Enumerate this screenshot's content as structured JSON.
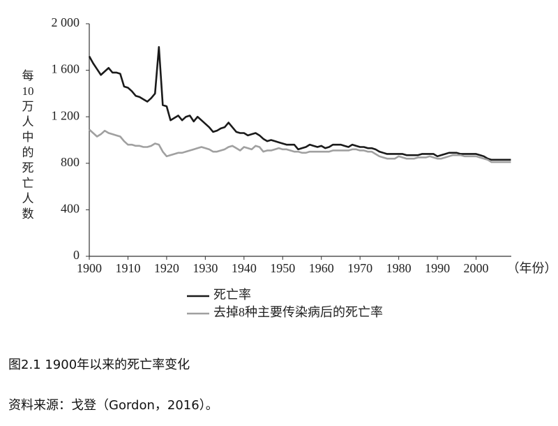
{
  "chart_data": {
    "type": "line",
    "y_label": "每10万人中的死亡人数",
    "x_label": "（年份）",
    "caption": "图2.1 1900年以来的死亡率变化",
    "source": "资料来源：戈登（Gordon，2016）。",
    "x": [
      1900,
      1901,
      1902,
      1903,
      1904,
      1905,
      1906,
      1907,
      1908,
      1909,
      1910,
      1911,
      1912,
      1913,
      1914,
      1915,
      1916,
      1917,
      1918,
      1919,
      1920,
      1921,
      1922,
      1923,
      1924,
      1925,
      1926,
      1927,
      1928,
      1929,
      1930,
      1931,
      1932,
      1933,
      1934,
      1935,
      1936,
      1937,
      1938,
      1939,
      1940,
      1941,
      1942,
      1943,
      1944,
      1945,
      1946,
      1947,
      1948,
      1949,
      1950,
      1951,
      1952,
      1953,
      1954,
      1955,
      1956,
      1957,
      1958,
      1959,
      1960,
      1961,
      1962,
      1963,
      1964,
      1965,
      1966,
      1967,
      1968,
      1969,
      1970,
      1971,
      1972,
      1973,
      1974,
      1975,
      1976,
      1977,
      1978,
      1979,
      1980,
      1981,
      1982,
      1983,
      1984,
      1985,
      1986,
      1987,
      1988,
      1989,
      1990,
      1991,
      1992,
      1993,
      1994,
      1995,
      1996,
      1997,
      1998,
      1999,
      2000,
      2001,
      2002,
      2003,
      2004,
      2005,
      2006,
      2007,
      2008,
      2009
    ],
    "series": [
      {
        "name": "死亡率",
        "color": "#1a1a1a",
        "values": [
          1720,
          1660,
          1610,
          1560,
          1590,
          1620,
          1580,
          1580,
          1570,
          1460,
          1450,
          1420,
          1380,
          1370,
          1350,
          1330,
          1360,
          1400,
          1800,
          1300,
          1290,
          1170,
          1190,
          1210,
          1170,
          1200,
          1210,
          1160,
          1200,
          1170,
          1140,
          1110,
          1070,
          1080,
          1100,
          1110,
          1150,
          1110,
          1070,
          1060,
          1060,
          1040,
          1050,
          1060,
          1040,
          1010,
          990,
          1000,
          990,
          980,
          970,
          960,
          960,
          960,
          920,
          930,
          940,
          960,
          950,
          940,
          950,
          930,
          940,
          960,
          960,
          960,
          950,
          940,
          960,
          950,
          940,
          940,
          930,
          930,
          920,
          900,
          890,
          880,
          880,
          880,
          880,
          880,
          870,
          870,
          870,
          870,
          880,
          880,
          880,
          880,
          860,
          870,
          880,
          890,
          890,
          890,
          880,
          880,
          880,
          880,
          880,
          870,
          860,
          840,
          830,
          830,
          830,
          830,
          830,
          830
        ]
      },
      {
        "name": "去掉8种主要传染病后的死亡率",
        "color": "#a0a0a0",
        "values": [
          1090,
          1060,
          1030,
          1050,
          1080,
          1060,
          1050,
          1040,
          1030,
          990,
          960,
          960,
          950,
          950,
          940,
          940,
          950,
          970,
          960,
          900,
          860,
          870,
          880,
          890,
          890,
          900,
          910,
          920,
          930,
          940,
          930,
          920,
          900,
          900,
          910,
          920,
          940,
          950,
          930,
          910,
          940,
          930,
          920,
          950,
          940,
          900,
          910,
          910,
          920,
          930,
          920,
          920,
          910,
          900,
          900,
          890,
          890,
          900,
          900,
          900,
          900,
          900,
          900,
          910,
          910,
          910,
          910,
          910,
          920,
          920,
          910,
          910,
          900,
          900,
          880,
          860,
          850,
          840,
          840,
          840,
          860,
          850,
          840,
          840,
          840,
          850,
          850,
          850,
          860,
          850,
          840,
          840,
          850,
          860,
          870,
          870,
          870,
          860,
          860,
          860,
          860,
          850,
          840,
          830,
          810,
          810,
          810,
          810,
          810,
          810
        ]
      }
    ],
    "xlim": [
      1900,
      2010
    ],
    "xticks": [
      1900,
      1910,
      1920,
      1930,
      1940,
      1950,
      1960,
      1970,
      1980,
      1990,
      2000
    ],
    "ylim": [
      0,
      2000
    ],
    "yticks": [
      0,
      400,
      800,
      {
        "value": 1200,
        "label": "1 200"
      },
      {
        "value": 1600,
        "label": "1 600"
      },
      {
        "value": 2000,
        "label": "2 000"
      }
    ]
  }
}
